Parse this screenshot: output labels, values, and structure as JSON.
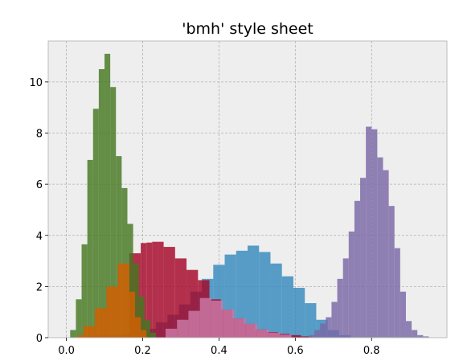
{
  "chart_data": {
    "type": "histogram",
    "title": "'bmh' style sheet",
    "xlabel": "",
    "ylabel": "",
    "xlim": [
      -0.0475,
      0.9975
    ],
    "ylim": [
      0,
      11.6
    ],
    "xticks": [
      0.0,
      0.2,
      0.4,
      0.6,
      0.8
    ],
    "xtick_labels": [
      "0.0",
      "0.2",
      "0.4",
      "0.6",
      "0.8"
    ],
    "yticks": [
      0,
      2,
      4,
      6,
      8,
      10
    ],
    "ytick_labels": [
      "0",
      "2",
      "4",
      "6",
      "8",
      "10"
    ],
    "grid": true,
    "background": "#eeeeee",
    "series": [
      {
        "color": "#348abd",
        "opacity": 0.82,
        "bin_edges": [
          0.055,
          0.085,
          0.115,
          0.145,
          0.175,
          0.205,
          0.235,
          0.265,
          0.295,
          0.325,
          0.355,
          0.385,
          0.415,
          0.445,
          0.475,
          0.505,
          0.535,
          0.565,
          0.595,
          0.625,
          0.655,
          0.685,
          0.715,
          0.745
        ],
        "values": [
          0.05,
          0.1,
          0.12,
          0.15,
          0.25,
          0.35,
          0.6,
          0.9,
          1.3,
          1.8,
          2.3,
          2.85,
          3.25,
          3.4,
          3.6,
          3.35,
          2.9,
          2.4,
          1.95,
          1.35,
          0.7,
          0.3,
          0.1
        ]
      },
      {
        "color": "#a60628",
        "opacity": 0.82,
        "bin_edges": [
          0.165,
          0.18,
          0.195,
          0.21,
          0.225,
          0.24,
          0.255,
          0.285,
          0.315,
          0.345,
          0.375,
          0.405,
          0.435,
          0.465,
          0.495,
          0.525,
          0.555,
          0.585,
          0.615,
          0.645
        ],
        "values": [
          3.3,
          3.3,
          3.7,
          3.72,
          3.75,
          3.75,
          3.55,
          3.1,
          2.65,
          2.25,
          1.5,
          1.1,
          0.75,
          0.55,
          0.32,
          0.22,
          0.15,
          0.1,
          0.05
        ]
      },
      {
        "color": "#7a68a6",
        "opacity": 0.82,
        "bin_edges": [
          0.635,
          0.65,
          0.665,
          0.68,
          0.695,
          0.71,
          0.725,
          0.74,
          0.755,
          0.77,
          0.785,
          0.8,
          0.815,
          0.83,
          0.845,
          0.86,
          0.875,
          0.89,
          0.905,
          0.92,
          0.935,
          0.95
        ],
        "values": [
          0.1,
          0.3,
          0.55,
          0.8,
          1.4,
          2.3,
          3.1,
          4.15,
          5.35,
          6.25,
          8.25,
          8.15,
          7.05,
          6.55,
          5.15,
          3.5,
          1.8,
          0.65,
          0.3,
          0.1,
          0.05
        ]
      },
      {
        "color": "#467821",
        "opacity": 0.82,
        "bin_edges": [
          0.01,
          0.025,
          0.04,
          0.055,
          0.07,
          0.085,
          0.1,
          0.115,
          0.13,
          0.145,
          0.16,
          0.175,
          0.19,
          0.205,
          0.22,
          0.235
        ],
        "values": [
          0.3,
          1.5,
          3.65,
          6.95,
          8.95,
          10.5,
          11.1,
          9.8,
          7.1,
          5.85,
          4.45,
          2.9,
          1.6,
          0.7,
          0.2
        ]
      },
      {
        "color": "#d55e00",
        "opacity": 0.82,
        "bin_edges": [
          0.03,
          0.045,
          0.06,
          0.075,
          0.09,
          0.105,
          0.12,
          0.135,
          0.15,
          0.165,
          0.18,
          0.195,
          0.21
        ],
        "values": [
          0.1,
          0.45,
          0.45,
          1.15,
          1.15,
          2.0,
          2.0,
          2.9,
          2.9,
          1.8,
          0.8,
          0.3
        ]
      },
      {
        "color": "#cc79a7",
        "opacity": 0.82,
        "bin_edges": [
          0.26,
          0.29,
          0.32,
          0.35,
          0.38,
          0.41,
          0.44,
          0.47,
          0.5,
          0.53,
          0.56,
          0.59
        ],
        "values": [
          0.35,
          0.7,
          1.05,
          1.55,
          1.45,
          1.1,
          0.75,
          0.55,
          0.32,
          0.2,
          0.12
        ]
      }
    ]
  }
}
